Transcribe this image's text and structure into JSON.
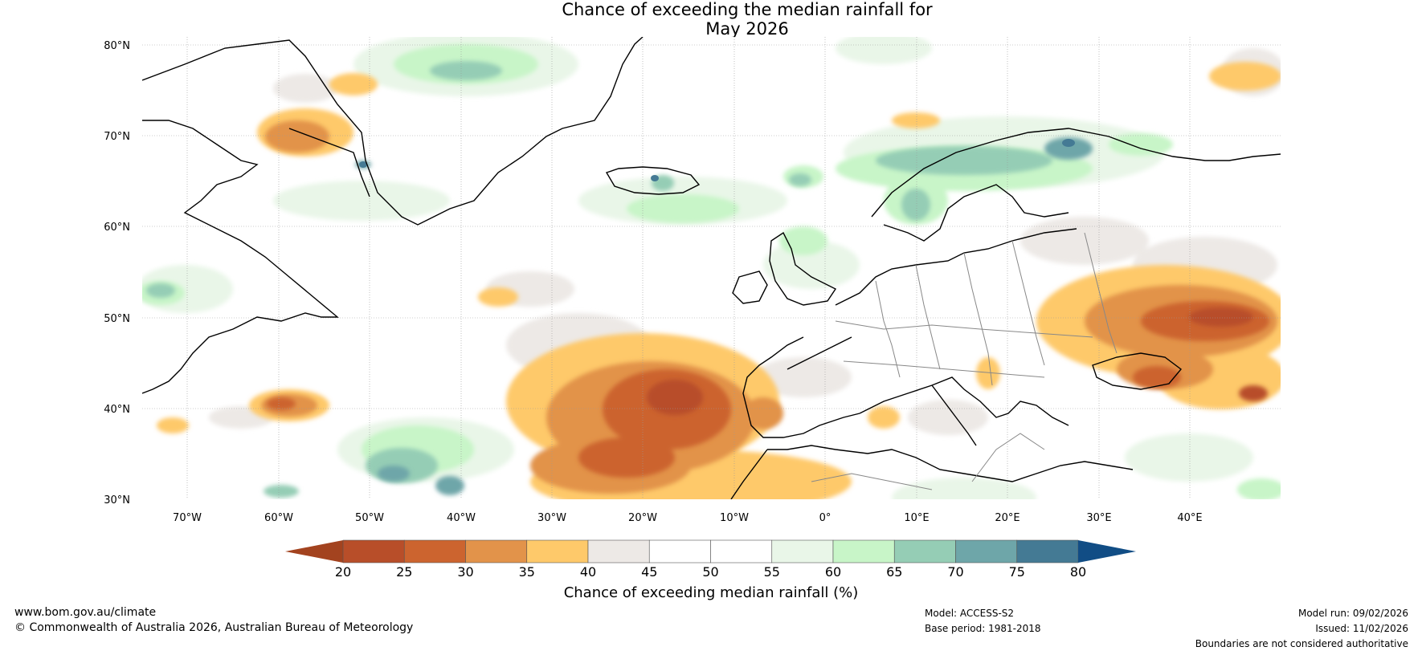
{
  "title": {
    "line1": "Chance of exceeding the median rainfall for",
    "line2": "May 2026"
  },
  "map": {
    "lat_labels": [
      "80°N",
      "70°N",
      "60°N",
      "50°N",
      "40°N",
      "30°N"
    ],
    "lon_labels": [
      "70°W",
      "60°W",
      "50°W",
      "40°W",
      "30°W",
      "20°W",
      "10°W",
      "0°",
      "10°E",
      "20°E",
      "30°E",
      "40°E"
    ],
    "extent": {
      "lon_min": -75,
      "lon_max": 50,
      "lat_min": 30,
      "lat_max": 81
    }
  },
  "colorbar": {
    "ticks": [
      "20",
      "25",
      "30",
      "35",
      "40",
      "45",
      "50",
      "55",
      "60",
      "65",
      "70",
      "75",
      "80"
    ],
    "colors": [
      "#a3431f",
      "#b84e29",
      "#cc642f",
      "#e2934a",
      "#fec96a",
      "#ede9e6",
      "#ffffff",
      "#ffffff",
      "#e9f6e8",
      "#c8f5c8",
      "#95cdb5",
      "#6ea6a9",
      "#447a94",
      "#114d85"
    ],
    "caption": "Chance of exceeding median rainfall (%)"
  },
  "footer": {
    "website": "www.bom.gov.au/climate",
    "copyright": "© Commonwealth of Australia 2026, Australian Bureau of Meteorology",
    "model": "Model: ACCESS-S2",
    "base_period": "Base period: 1981-2018",
    "model_run": "Model run: 09/02/2026",
    "issued": "Issued: 11/02/2026",
    "disclaimer": "Boundaries are not considered authoritative"
  }
}
